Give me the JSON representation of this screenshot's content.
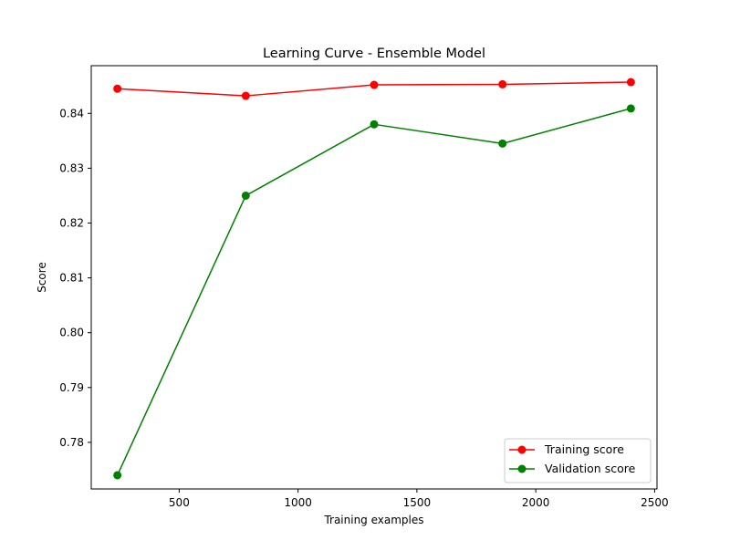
{
  "chart_data": {
    "type": "line",
    "title": "Learning Curve - Ensemble Model",
    "xlabel": "Training examples",
    "ylabel": "Score",
    "x": [
      240,
      780,
      1320,
      1860,
      2400
    ],
    "xlim": [
      130,
      2510
    ],
    "ylim": [
      0.7715,
      0.8487
    ],
    "xticks": [
      500,
      1000,
      1500,
      2000,
      2500
    ],
    "xtick_labels": [
      "500",
      "1000",
      "1500",
      "2000",
      "2500"
    ],
    "yticks": [
      0.78,
      0.79,
      0.8,
      0.81,
      0.82,
      0.83,
      0.84
    ],
    "ytick_labels": [
      "0.78",
      "0.79",
      "0.80",
      "0.81",
      "0.82",
      "0.83",
      "0.84"
    ],
    "grid": false,
    "legend_position": "bottom-right",
    "series": [
      {
        "name": "Training score",
        "color": "#ff0000",
        "marker": "circle",
        "values": [
          0.8445,
          0.8432,
          0.8452,
          0.8453,
          0.8457
        ]
      },
      {
        "name": "Validation score",
        "color": "#008000",
        "marker": "circle",
        "values": [
          0.774,
          0.825,
          0.838,
          0.8345,
          0.8409
        ]
      }
    ]
  }
}
